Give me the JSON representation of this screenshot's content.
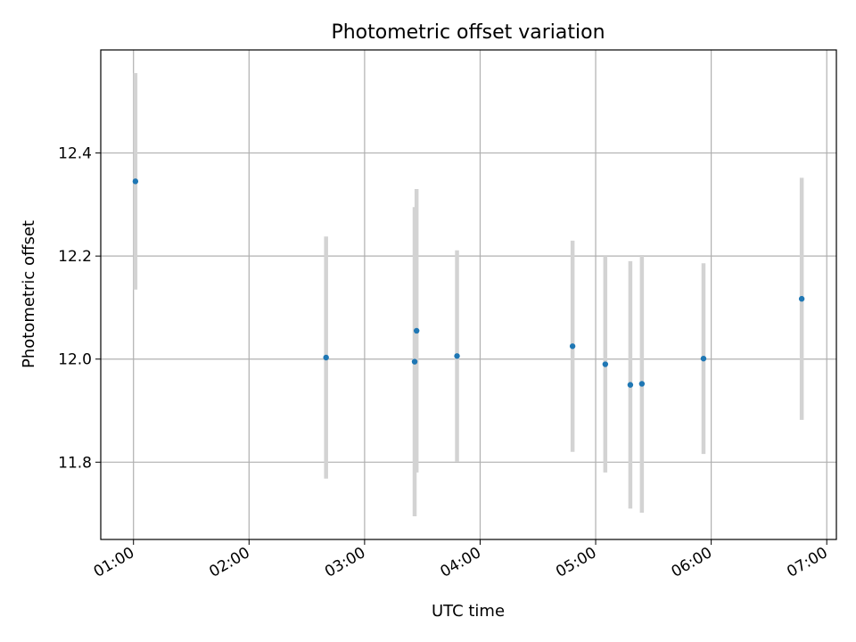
{
  "chart_data": {
    "type": "scatter",
    "title": "Photometric offset variation",
    "xlabel": "UTC time",
    "ylabel": "Photometric offset",
    "x_tick_labels": [
      "01:00",
      "02:00",
      "03:00",
      "04:00",
      "05:00",
      "06:00",
      "07:00"
    ],
    "y_tick_labels": [
      "11.8",
      "12.0",
      "12.2",
      "12.4"
    ],
    "xlim": [
      "00:43",
      "07:05"
    ],
    "ylim": [
      11.65,
      12.6
    ],
    "grid": true,
    "marker_color": "#1f77b4",
    "errorbar_color": "#d3d3d3",
    "points": [
      {
        "x": "01:01",
        "y": 12.345,
        "yerr": 0.21
      },
      {
        "x": "02:40",
        "y": 12.003,
        "yerr": 0.235
      },
      {
        "x": "03:26",
        "y": 11.995,
        "yerr": 0.3
      },
      {
        "x": "03:27",
        "y": 12.055,
        "yerr": 0.275
      },
      {
        "x": "03:48",
        "y": 12.006,
        "yerr": 0.205
      },
      {
        "x": "04:48",
        "y": 12.025,
        "yerr": 0.205
      },
      {
        "x": "05:05",
        "y": 11.99,
        "yerr": 0.21
      },
      {
        "x": "05:18",
        "y": 11.95,
        "yerr": 0.24
      },
      {
        "x": "05:24",
        "y": 11.952,
        "yerr": 0.25
      },
      {
        "x": "05:56",
        "y": 12.001,
        "yerr": 0.185
      },
      {
        "x": "06:47",
        "y": 12.117,
        "yerr": 0.235
      }
    ]
  }
}
